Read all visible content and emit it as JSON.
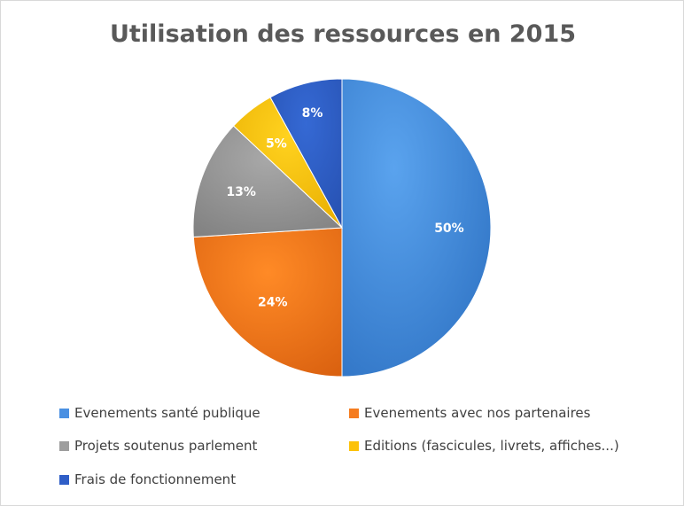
{
  "chart_data": {
    "type": "pie",
    "title": "Utilisation des ressources en 2015",
    "categories": [
      "Evenements santé publique",
      "Evenements avec nos partenaires",
      "Projets soutenus parlement",
      "Editions (fascicules, livrets, affiches...)",
      "Frais de fonctionnement"
    ],
    "values": [
      50,
      24,
      13,
      5,
      8
    ],
    "labels": [
      "50%",
      "24%",
      "13%",
      "5%",
      "8%"
    ],
    "colors": [
      "#4a90e2",
      "#f57c20",
      "#9e9e9e",
      "#fcc20a",
      "#2f5ec7"
    ],
    "legend_position": "bottom",
    "start_angle": "top, clockwise"
  }
}
